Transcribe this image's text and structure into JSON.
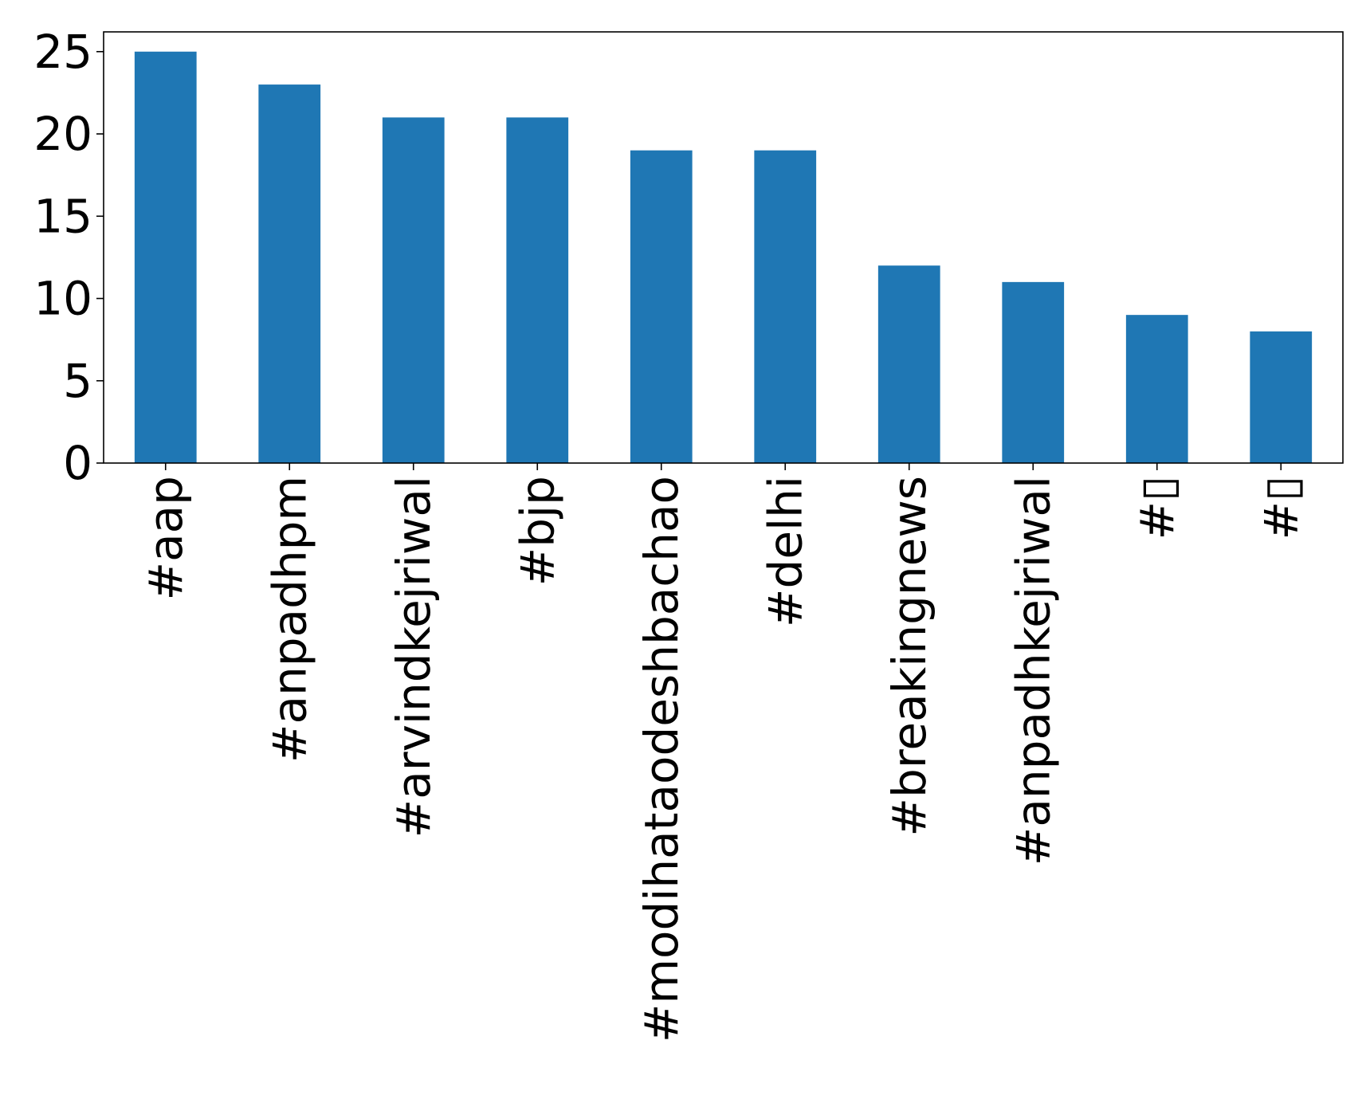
{
  "chart_data": {
    "type": "bar",
    "title": "",
    "xlabel": "",
    "ylabel": "",
    "categories": [
      "#aap",
      "#anpadhpm",
      "#arvindkejriwal",
      "#bjp",
      "#modihataodeshbachao",
      "#delhi",
      "#breakingnews",
      "#anpadhkejriwal",
      "#▯",
      "#▯"
    ],
    "values": [
      25,
      23,
      21,
      21,
      19,
      19,
      12,
      11,
      9,
      8
    ],
    "ylim": [
      0,
      26.2
    ],
    "yticks": [
      0,
      5,
      10,
      15,
      20,
      25
    ],
    "grid": false,
    "legend": "none",
    "bar_color": "#1f77b4"
  }
}
